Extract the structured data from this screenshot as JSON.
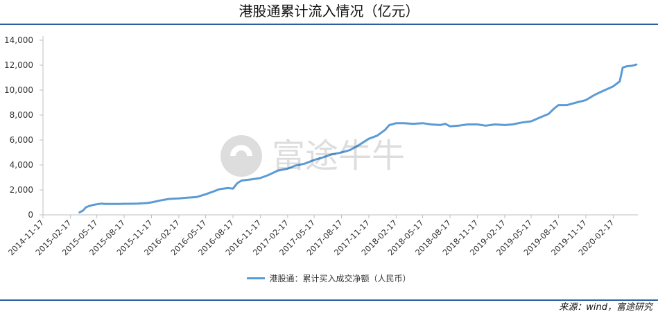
{
  "title": "港股通累计流入情况（亿元）",
  "source": "来源：wind，富途研究",
  "watermark_text": "富途牛牛",
  "colors": {
    "line": "#5b9bd5",
    "rule": "#2c5fa0",
    "axis": "#bfbfbf"
  },
  "chart_data": {
    "type": "line",
    "title": "港股通累计流入情况（亿元）",
    "xlabel": "",
    "ylabel": "",
    "ylim": [
      0,
      14000
    ],
    "yticks": [
      "0",
      "2,000",
      "4,000",
      "6,000",
      "8,000",
      "10,000",
      "12,000",
      "14,000"
    ],
    "xlim": [
      "2014-11-17",
      "2020-05-10"
    ],
    "xticks": [
      "2014-11-17",
      "2015-02-17",
      "2015-05-17",
      "2015-08-17",
      "2015-11-17",
      "2016-02-17",
      "2016-05-17",
      "2016-08-17",
      "2016-11-17",
      "2017-02-17",
      "2017-05-17",
      "2017-08-17",
      "2017-11-17",
      "2018-02-17",
      "2018-05-17",
      "2018-08-17",
      "2018-11-17",
      "2019-02-17",
      "2019-05-17",
      "2019-08-17",
      "2019-11-17",
      "2020-02-17"
    ],
    "grid": false,
    "legend": "bottom",
    "series": [
      {
        "name": "港股通：累计买入成交净额（人民币）",
        "x": [
          "2015-03-20",
          "2015-04-01",
          "2015-04-10",
          "2015-04-20",
          "2015-05-05",
          "2015-05-17",
          "2015-06-01",
          "2015-06-15",
          "2015-07-01",
          "2015-07-15",
          "2015-08-01",
          "2015-08-17",
          "2015-09-01",
          "2015-10-01",
          "2015-11-01",
          "2015-11-17",
          "2015-12-15",
          "2016-01-15",
          "2016-02-17",
          "2016-03-15",
          "2016-04-15",
          "2016-05-17",
          "2016-06-15",
          "2016-07-01",
          "2016-07-15",
          "2016-08-01",
          "2016-08-17",
          "2016-09-01",
          "2016-09-15",
          "2016-10-01",
          "2016-10-20",
          "2016-11-17",
          "2016-12-15",
          "2017-01-15",
          "2017-02-17",
          "2017-03-15",
          "2017-04-15",
          "2017-05-17",
          "2017-06-15",
          "2017-07-15",
          "2017-08-17",
          "2017-09-15",
          "2017-10-15",
          "2017-11-17",
          "2017-12-15",
          "2018-01-10",
          "2018-01-25",
          "2018-02-17",
          "2018-03-15",
          "2018-04-15",
          "2018-05-17",
          "2018-06-15",
          "2018-07-15",
          "2018-08-01",
          "2018-08-17",
          "2018-09-15",
          "2018-10-15",
          "2018-11-17",
          "2018-12-15",
          "2019-01-15",
          "2019-02-17",
          "2019-03-15",
          "2019-04-15",
          "2019-05-17",
          "2019-06-15",
          "2019-07-15",
          "2019-08-01",
          "2019-08-17",
          "2019-09-15",
          "2019-10-15",
          "2019-11-17",
          "2019-12-15",
          "2020-01-01",
          "2020-01-20",
          "2020-02-17",
          "2020-03-10",
          "2020-03-20",
          "2020-04-01",
          "2020-04-20",
          "2020-05-05"
        ],
        "values": [
          200,
          350,
          600,
          700,
          800,
          850,
          900,
          880,
          870,
          870,
          880,
          890,
          890,
          900,
          950,
          1000,
          1150,
          1280,
          1320,
          1380,
          1420,
          1650,
          1900,
          2050,
          2100,
          2150,
          2100,
          2550,
          2750,
          2800,
          2850,
          2950,
          3200,
          3550,
          3700,
          3950,
          4100,
          4400,
          4600,
          4850,
          5000,
          5200,
          5600,
          6100,
          6350,
          6800,
          7200,
          7350,
          7350,
          7300,
          7350,
          7250,
          7200,
          7300,
          7100,
          7150,
          7250,
          7250,
          7150,
          7250,
          7200,
          7250,
          7400,
          7500,
          7800,
          8100,
          8500,
          8800,
          8800,
          9000,
          9200,
          9600,
          9800,
          10000,
          10300,
          10700,
          11800,
          11900,
          11950,
          12050
        ]
      }
    ]
  }
}
